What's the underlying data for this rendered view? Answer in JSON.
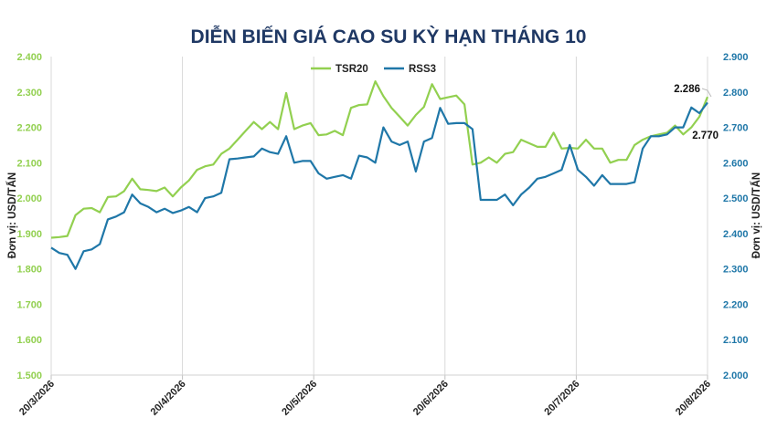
{
  "chart_data": {
    "type": "line",
    "title": "DIỄN BIẾN GIÁ CAO SU KỲ HẠN THÁNG 10",
    "ylabel_left": "Đơn vị: USD/TẤN",
    "ylabel_right": "Đơn vị: USD/TẤN",
    "ylim_left": [
      1500,
      2400
    ],
    "ylim_right": [
      2000,
      2900
    ],
    "yticks_left": [
      "1.500",
      "1.600",
      "1.700",
      "1.800",
      "1.900",
      "2.000",
      "2.100",
      "2.200",
      "2.300",
      "2.400"
    ],
    "yticks_right": [
      "2.000",
      "2.100",
      "2.200",
      "2.300",
      "2.400",
      "2.500",
      "2.600",
      "2.700",
      "2.800",
      "2.900"
    ],
    "xticks": [
      "20/3/2026",
      "20/4/2026",
      "20/5/2026",
      "20/6/2026",
      "20/7/2026",
      "20/8/2026"
    ],
    "legend_position": "top-center",
    "grid": "vertical",
    "series": [
      {
        "name": "TSR20",
        "axis": "left",
        "color": "#92d050",
        "values": [
          1888,
          1890,
          1893,
          1952,
          1970,
          1972,
          1960,
          2003,
          2005,
          2020,
          2055,
          2025,
          2023,
          2020,
          2030,
          2005,
          2030,
          2050,
          2080,
          2090,
          2095,
          2125,
          2140,
          2165,
          2190,
          2215,
          2195,
          2215,
          2195,
          2297,
          2195,
          2205,
          2212,
          2178,
          2180,
          2190,
          2178,
          2255,
          2263,
          2265,
          2330,
          2288,
          2255,
          2230,
          2205,
          2235,
          2258,
          2322,
          2280,
          2285,
          2290,
          2265,
          2095,
          2100,
          2115,
          2100,
          2125,
          2130,
          2165,
          2155,
          2145,
          2145,
          2185,
          2140,
          2142,
          2140,
          2165,
          2140,
          2140,
          2100,
          2108,
          2108,
          2150,
          2165,
          2175,
          2180,
          2185,
          2205,
          2180,
          2200,
          2230,
          2286
        ]
      },
      {
        "name": "RSS3",
        "axis": "right",
        "color": "#1f77a8",
        "values": [
          2360,
          2345,
          2340,
          2300,
          2350,
          2355,
          2370,
          2440,
          2448,
          2460,
          2510,
          2485,
          2475,
          2460,
          2470,
          2458,
          2465,
          2475,
          2460,
          2500,
          2505,
          2515,
          2610,
          2612,
          2615,
          2618,
          2640,
          2630,
          2625,
          2675,
          2600,
          2605,
          2605,
          2570,
          2555,
          2560,
          2565,
          2555,
          2620,
          2615,
          2600,
          2700,
          2660,
          2650,
          2660,
          2575,
          2660,
          2670,
          2755,
          2710,
          2712,
          2712,
          2695,
          2495,
          2495,
          2495,
          2510,
          2480,
          2510,
          2530,
          2555,
          2560,
          2570,
          2580,
          2650,
          2580,
          2560,
          2535,
          2565,
          2540,
          2540,
          2540,
          2545,
          2640,
          2675,
          2675,
          2680,
          2700,
          2700,
          2756,
          2740,
          2770
        ]
      }
    ],
    "annotations": [
      {
        "series": "TSR20",
        "text": "2.286"
      },
      {
        "series": "RSS3",
        "text": "2.770"
      }
    ]
  }
}
